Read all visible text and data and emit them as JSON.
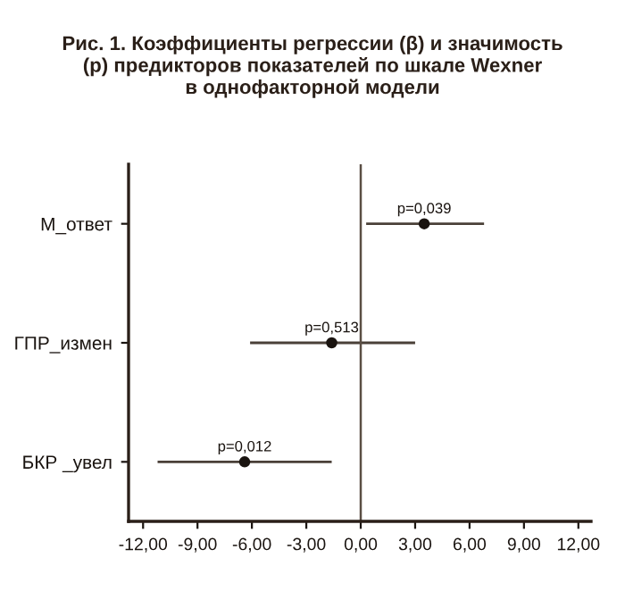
{
  "chart_data": {
    "type": "scatter",
    "orientation": "horizontal",
    "title": "Рис. 1. Коэффициенты регрессии (β) и значимость\n(p) предикторов показателей по шкале Wexner\nв однофакторной модели",
    "categories": [
      "М_ответ",
      "ГПР_измен",
      "БКР _увел"
    ],
    "values": [
      3.5,
      -1.6,
      -6.4
    ],
    "errors": [
      [
        0.3,
        6.8
      ],
      [
        -6.1,
        3.0
      ],
      [
        -11.2,
        -1.6
      ]
    ],
    "color": "#1a1410",
    "marker": "circle",
    "xlim": [
      -12.8,
      12.7
    ],
    "xticks": [
      {
        "value": -12,
        "label": "-12,00"
      },
      {
        "value": -9,
        "label": "-9,00"
      },
      {
        "value": -6,
        "label": "-6,00"
      },
      {
        "value": -3,
        "label": "-3,00"
      },
      {
        "value": 0,
        "label": "0,00"
      },
      {
        "value": 3,
        "label": "3,00"
      },
      {
        "value": 6,
        "label": "6,00"
      },
      {
        "value": 9,
        "label": "9,00"
      },
      {
        "value": 12,
        "label": "12,00"
      }
    ],
    "ref_lines": [
      {
        "axis": "x",
        "value": 0,
        "color": "#5a4e44"
      }
    ],
    "annotations": [
      {
        "text": "p=0,039",
        "x": 3.5,
        "y": "М_ответ"
      },
      {
        "text": "p=0,513",
        "x": -1.6,
        "y": "ГПР_измен"
      },
      {
        "text": "p=0,012",
        "x": -6.4,
        "y": "БКР _увел"
      }
    ],
    "grid": false,
    "legend": false
  }
}
